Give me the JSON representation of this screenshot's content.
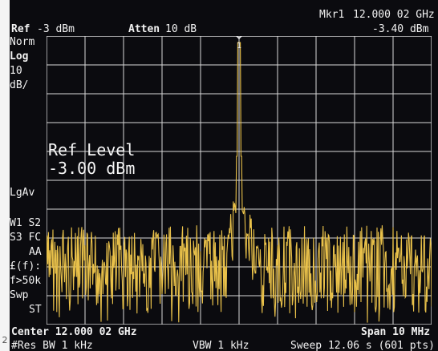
{
  "header": {
    "ref_label": "Ref",
    "ref_value": "-3 dBm",
    "atten_label": "Atten",
    "atten_value": "10 dB",
    "marker_label": "Mkr1",
    "marker_freq": "12.000 02 GHz",
    "marker_level": "-3.40 dBm"
  },
  "left_panel": {
    "norm": "Norm",
    "log": "Log",
    "scale_value": "10",
    "scale_unit": "dB/",
    "lgav": "LgAv",
    "w1_s2": "W1  S2",
    "s3_fc": "S3  FC",
    "aa": "AA",
    "ef": "£(f):",
    "ftun": "f>50k",
    "swp": "Swp",
    "st": "ST"
  },
  "overlay": {
    "ref_level_title": "Ref Level",
    "ref_level_value": "-3.00 dBm"
  },
  "marker": {
    "number": "1"
  },
  "footer": {
    "center": "Center 12.000 02 GHz",
    "span": "Span 10 MHz",
    "res_bw": "#Res BW 1 kHz",
    "vbw": "VBW 1 kHz",
    "sweep": "Sweep 12.06 s (601 pts)"
  },
  "side_mark": "2",
  "colors": {
    "screen": "#0b0b0f",
    "grid": "#d8d8d8",
    "trace": "#e9c14a",
    "text": "#f2f2f2"
  }
}
